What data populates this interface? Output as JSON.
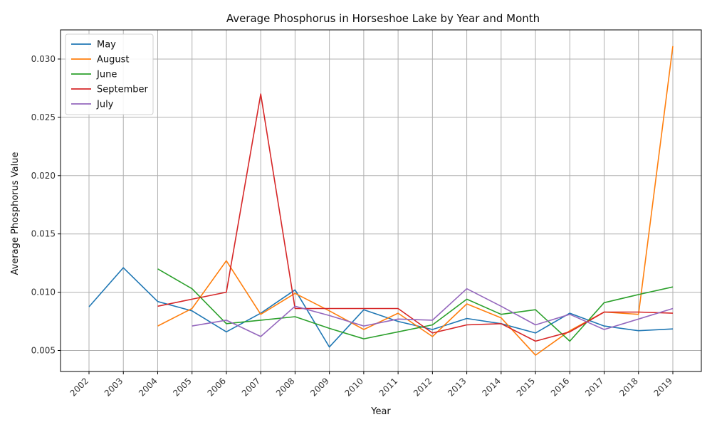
{
  "chart_data": {
    "type": "line",
    "title": "Average Phosphorus in Horseshoe Lake by Year and Month",
    "xlabel": "Year",
    "ylabel": "Average Phosphorus Value",
    "x": [
      "2002",
      "2003",
      "2004",
      "2005",
      "2006",
      "2007",
      "2008",
      "2009",
      "2010",
      "2011",
      "2012",
      "2013",
      "2014",
      "2015",
      "2016",
      "2017",
      "2018",
      "2019"
    ],
    "ylim": [
      0.0032,
      0.0325
    ],
    "yticks": [
      "0.005",
      "0.010",
      "0.015",
      "0.020",
      "0.025",
      "0.030"
    ],
    "grid": true,
    "legend_position": "top-left",
    "series": [
      {
        "name": "May",
        "color": "#1f77b4",
        "values": [
          0.00875,
          0.0121,
          0.0092,
          0.0084,
          0.0066,
          0.0082,
          0.0102,
          0.0053,
          0.0085,
          0.0075,
          0.0068,
          0.00775,
          0.0073,
          0.0065,
          0.0082,
          0.0071,
          0.0067,
          0.00685
        ]
      },
      {
        "name": "August",
        "color": "#ff7f0e",
        "values": [
          null,
          null,
          0.0071,
          0.0086,
          0.0127,
          0.0081,
          0.0099,
          0.0084,
          0.0068,
          0.0082,
          0.0062,
          0.009,
          0.0078,
          0.0046,
          0.0067,
          0.0083,
          0.0081,
          0.0311
        ]
      },
      {
        "name": "June",
        "color": "#2ca02c",
        "values": [
          null,
          null,
          0.012,
          0.0103,
          0.0073,
          0.0076,
          0.0079,
          0.0069,
          0.006,
          0.0066,
          0.0072,
          0.0094,
          0.0081,
          0.0085,
          0.0058,
          0.0091,
          0.0098,
          0.01045
        ]
      },
      {
        "name": "September",
        "color": "#d62728",
        "values": [
          null,
          null,
          0.0088,
          0.0094,
          0.01,
          0.027,
          0.0086,
          0.0086,
          0.0086,
          0.0086,
          0.0065,
          0.0072,
          0.0073,
          0.0058,
          0.0066,
          0.0083,
          0.0083,
          0.0082
        ]
      },
      {
        "name": "July",
        "color": "#9467bd",
        "values": [
          null,
          null,
          null,
          0.0071,
          0.0076,
          0.0062,
          0.0088,
          0.008,
          0.0071,
          0.0077,
          0.0076,
          0.0103,
          0.0088,
          0.0072,
          0.0081,
          0.0068,
          0.0077,
          0.0086
        ]
      }
    ]
  }
}
